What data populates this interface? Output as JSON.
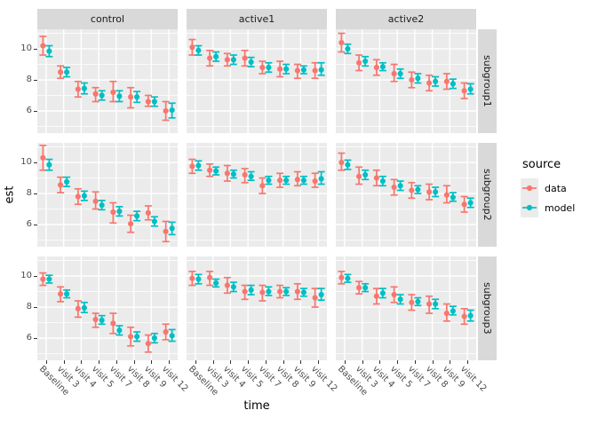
{
  "chart_data": {
    "type": "scatter",
    "subtype": "pointrange-errorbar-faceted",
    "title": "",
    "xlabel": "time",
    "ylabel": "est",
    "categories": [
      "Baseline",
      "visit 3",
      "visit 4",
      "visit 5",
      "visit 7",
      "visit 8",
      "visit 9",
      "visit 12"
    ],
    "y_ticks": [
      6,
      8,
      10
    ],
    "y_minor_ticks": [
      5,
      7,
      9,
      11
    ],
    "ylim": [
      4.57,
      11.26
    ],
    "grid": true,
    "facet_columns": [
      "control",
      "active1",
      "active2"
    ],
    "facet_rows": [
      "subgroup1",
      "subgroup2",
      "subgroup3"
    ],
    "legend": {
      "title": "source",
      "position": "right",
      "entries": [
        {
          "label": "data",
          "color": "#F8766D"
        },
        {
          "label": "model",
          "color": "#00BFC4"
        }
      ]
    },
    "colors": {
      "data": "#F8766D",
      "model": "#00BFC4",
      "panel_bg": "#EBEBEB",
      "strip_bg": "#D9D9D9",
      "gridline": "#FFFFFF",
      "axis_text": "#4D4D4D"
    },
    "panels": [
      {
        "facet_col": "control",
        "facet_row": "subgroup1",
        "series": [
          {
            "name": "data",
            "est": [
              10.2,
              8.5,
              7.4,
              7.1,
              7.2,
              6.9,
              6.6,
              6.0
            ],
            "lower": [
              9.6,
              8.1,
              6.9,
              6.6,
              6.6,
              6.2,
              6.3,
              5.4
            ],
            "upper": [
              10.8,
              8.9,
              7.9,
              7.5,
              7.9,
              7.5,
              7.0,
              6.6
            ]
          },
          {
            "name": "model",
            "est": [
              9.85,
              8.5,
              7.45,
              7.0,
              6.95,
              6.9,
              6.6,
              6.05
            ],
            "lower": [
              9.5,
              8.2,
              7.1,
              6.7,
              6.6,
              6.55,
              6.3,
              5.55
            ],
            "upper": [
              10.2,
              8.8,
              7.8,
              7.3,
              7.3,
              7.25,
              6.9,
              6.5
            ]
          }
        ]
      },
      {
        "facet_col": "active1",
        "facet_row": "subgroup1",
        "series": [
          {
            "name": "data",
            "est": [
              10.1,
              9.4,
              9.3,
              9.4,
              8.8,
              8.7,
              8.6,
              8.6
            ],
            "lower": [
              9.6,
              8.9,
              8.9,
              8.9,
              8.4,
              8.2,
              8.1,
              8.1
            ],
            "upper": [
              10.6,
              9.9,
              9.7,
              9.9,
              9.2,
              9.2,
              9.0,
              9.1
            ]
          },
          {
            "name": "model",
            "est": [
              9.9,
              9.5,
              9.3,
              9.15,
              8.8,
              8.7,
              8.65,
              8.65
            ],
            "lower": [
              9.6,
              9.2,
              9.0,
              8.85,
              8.5,
              8.4,
              8.4,
              8.3
            ],
            "upper": [
              10.2,
              9.8,
              9.6,
              9.45,
              9.1,
              9.0,
              8.9,
              9.1
            ]
          }
        ]
      },
      {
        "facet_col": "active2",
        "facet_row": "subgroup1",
        "series": [
          {
            "name": "data",
            "est": [
              10.4,
              9.1,
              8.8,
              8.4,
              8.0,
              7.8,
              7.9,
              7.3
            ],
            "lower": [
              9.8,
              8.6,
              8.3,
              7.9,
              7.5,
              7.3,
              7.4,
              6.8
            ],
            "upper": [
              11.0,
              9.6,
              9.3,
              9.0,
              8.5,
              8.3,
              8.4,
              7.8
            ]
          },
          {
            "name": "model",
            "est": [
              10.0,
              9.2,
              8.85,
              8.4,
              8.1,
              7.9,
              7.75,
              7.4
            ],
            "lower": [
              9.7,
              8.9,
              8.6,
              8.1,
              7.8,
              7.6,
              7.45,
              7.1
            ],
            "upper": [
              10.3,
              9.5,
              9.1,
              8.7,
              8.4,
              8.2,
              8.05,
              7.75
            ]
          }
        ]
      },
      {
        "facet_col": "control",
        "facet_row": "subgroup2",
        "series": [
          {
            "name": "data",
            "est": [
              10.3,
              8.55,
              7.8,
              7.5,
              6.8,
              6.05,
              6.75,
              5.55
            ],
            "lower": [
              9.5,
              8.05,
              7.3,
              7.0,
              6.1,
              5.5,
              6.3,
              4.9
            ],
            "upper": [
              11.1,
              9.05,
              8.3,
              8.1,
              7.4,
              6.6,
              7.2,
              6.2
            ]
          },
          {
            "name": "model",
            "est": [
              9.85,
              8.75,
              7.85,
              7.25,
              6.85,
              6.55,
              6.2,
              5.75
            ],
            "lower": [
              9.5,
              8.45,
              7.55,
              6.95,
              6.55,
              6.25,
              5.9,
              5.35
            ],
            "upper": [
              10.2,
              9.05,
              8.15,
              7.55,
              7.15,
              6.85,
              6.5,
              6.15
            ]
          }
        ]
      },
      {
        "facet_col": "active1",
        "facet_row": "subgroup2",
        "series": [
          {
            "name": "data",
            "est": [
              9.75,
              9.5,
              9.3,
              9.2,
              8.5,
              8.85,
              8.9,
              8.8
            ],
            "lower": [
              9.3,
              9.1,
              8.8,
              8.7,
              8.0,
              8.4,
              8.5,
              8.4
            ],
            "upper": [
              10.2,
              9.9,
              9.8,
              9.6,
              9.0,
              9.3,
              9.4,
              9.3
            ]
          },
          {
            "name": "model",
            "est": [
              9.8,
              9.45,
              9.25,
              9.1,
              8.85,
              8.85,
              8.85,
              8.95
            ],
            "lower": [
              9.5,
              9.2,
              9.0,
              8.85,
              8.6,
              8.6,
              8.6,
              8.6
            ],
            "upper": [
              10.1,
              9.7,
              9.5,
              9.4,
              9.1,
              9.1,
              9.1,
              9.4
            ]
          }
        ]
      },
      {
        "facet_col": "active2",
        "facet_row": "subgroup2",
        "series": [
          {
            "name": "data",
            "est": [
              10.0,
              9.1,
              9.0,
              8.4,
              8.2,
              8.1,
              7.9,
              7.3
            ],
            "lower": [
              9.5,
              8.6,
              8.5,
              7.9,
              7.7,
              7.6,
              7.4,
              6.8
            ],
            "upper": [
              10.6,
              9.7,
              9.5,
              8.9,
              8.7,
              8.6,
              8.5,
              7.8
            ]
          },
          {
            "name": "model",
            "est": [
              9.85,
              9.2,
              8.8,
              8.5,
              8.25,
              8.1,
              7.75,
              7.4
            ],
            "lower": [
              9.55,
              8.9,
              8.5,
              8.2,
              8.0,
              7.8,
              7.5,
              7.1
            ],
            "upper": [
              10.15,
              9.5,
              9.1,
              8.8,
              8.5,
              8.4,
              8.05,
              7.7
            ]
          }
        ]
      },
      {
        "facet_col": "control",
        "facet_row": "subgroup3",
        "series": [
          {
            "name": "data",
            "est": [
              9.8,
              8.85,
              7.9,
              7.2,
              6.95,
              6.1,
              5.65,
              6.4
            ],
            "lower": [
              9.4,
              8.35,
              7.35,
              6.7,
              6.3,
              5.5,
              5.1,
              5.9
            ],
            "upper": [
              10.2,
              9.3,
              8.4,
              7.6,
              7.6,
              6.7,
              6.2,
              6.9
            ]
          },
          {
            "name": "model",
            "est": [
              9.8,
              8.85,
              7.95,
              7.15,
              6.5,
              6.1,
              6.0,
              6.15
            ],
            "lower": [
              9.55,
              8.6,
              7.65,
              6.9,
              6.2,
              5.8,
              5.7,
              5.8
            ],
            "upper": [
              10.05,
              9.1,
              8.3,
              7.45,
              6.8,
              6.4,
              6.3,
              6.55
            ]
          }
        ]
      },
      {
        "facet_col": "active1",
        "facet_row": "subgroup3",
        "series": [
          {
            "name": "data",
            "est": [
              9.85,
              9.9,
              9.4,
              9.0,
              8.95,
              9.0,
              9.0,
              8.6
            ],
            "lower": [
              9.4,
              9.4,
              8.9,
              8.5,
              8.4,
              8.6,
              8.5,
              8.0
            ],
            "upper": [
              10.3,
              10.3,
              9.9,
              9.4,
              9.4,
              9.4,
              9.5,
              9.2
            ]
          },
          {
            "name": "model",
            "est": [
              9.8,
              9.55,
              9.3,
              9.1,
              9.0,
              9.0,
              8.95,
              8.8
            ],
            "lower": [
              9.5,
              9.3,
              9.0,
              8.8,
              8.75,
              8.75,
              8.7,
              8.45
            ],
            "upper": [
              10.1,
              9.8,
              9.6,
              9.4,
              9.3,
              9.25,
              9.2,
              9.2
            ]
          }
        ]
      },
      {
        "facet_col": "active2",
        "facet_row": "subgroup3",
        "series": [
          {
            "name": "data",
            "est": [
              9.9,
              9.25,
              8.7,
              8.8,
              8.3,
              8.2,
              7.6,
              7.4
            ],
            "lower": [
              9.5,
              8.85,
              8.2,
              8.3,
              7.8,
              7.6,
              7.1,
              6.9
            ],
            "upper": [
              10.3,
              9.65,
              9.2,
              9.3,
              8.8,
              8.7,
              8.2,
              7.9
            ]
          },
          {
            "name": "model",
            "est": [
              9.85,
              9.25,
              8.9,
              8.5,
              8.35,
              8.2,
              7.75,
              7.45
            ],
            "lower": [
              9.6,
              9.0,
              8.6,
              8.2,
              8.1,
              7.9,
              7.5,
              7.1
            ],
            "upper": [
              10.1,
              9.5,
              9.2,
              8.8,
              8.6,
              8.5,
              8.05,
              7.8
            ]
          }
        ]
      }
    ]
  }
}
